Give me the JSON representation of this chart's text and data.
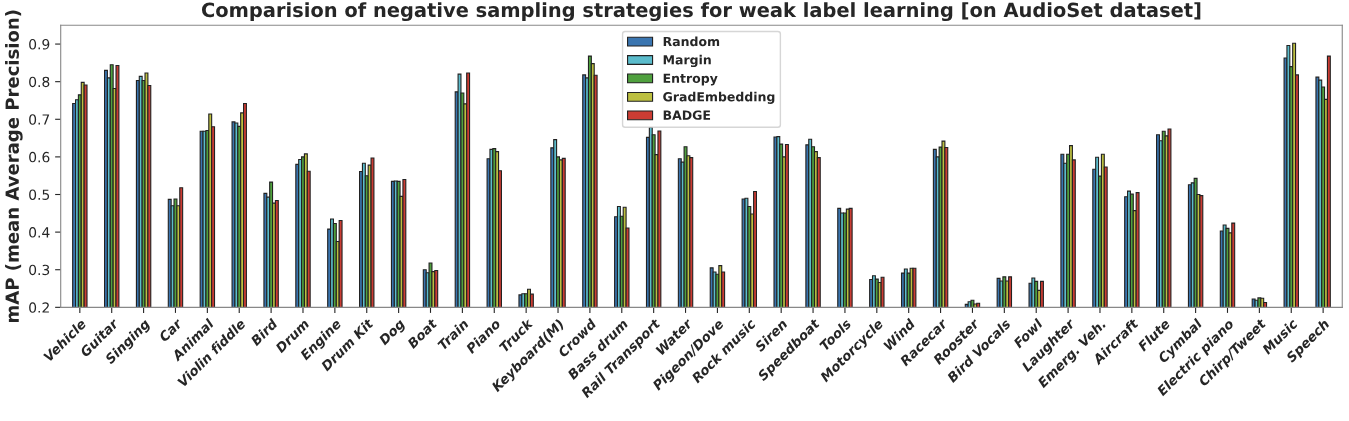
{
  "chart_data": {
    "type": "bar",
    "title": "Comparision of negative sampling strategies for weak label learning [on AudioSet dataset]",
    "ylabel": "mAP (mean Average Precision)",
    "categories": [
      "Vehicle",
      "Guitar",
      "Singing",
      "Car",
      "Animal",
      "Violin fiddle",
      "Bird",
      "Drum",
      "Engine",
      "Drum Kit",
      "Dog",
      "Boat",
      "Train",
      "Piano",
      "Truck",
      "Keyboard(M)",
      "Crowd",
      "Bass drum",
      "Rail Transport",
      "Water",
      "Pigeon/Dove",
      "Rock music",
      "Siren",
      "Speedboat",
      "Tools",
      "Motorcycle",
      "Wind",
      "Racecar",
      "Rooster",
      "Bird Vocals",
      "Fowl",
      "Laughter",
      "Emerg. Veh.",
      "Aircraft",
      "Flute",
      "Cymbal",
      "Electric piano",
      "Chirp/Tweet",
      "Music",
      "Speech"
    ],
    "series": [
      {
        "name": "Random",
        "color": "#3a75b0",
        "values": [
          0.742,
          0.83,
          0.803,
          0.487,
          0.668,
          0.693,
          0.503,
          0.58,
          0.408,
          0.561,
          0.535,
          0.3,
          0.773,
          0.595,
          0.233,
          0.624,
          0.818,
          0.441,
          0.652,
          0.595,
          0.305,
          0.488,
          0.653,
          0.632,
          0.463,
          0.274,
          0.291,
          0.62,
          0.208,
          0.277,
          0.264,
          0.607,
          0.567,
          0.494,
          0.659,
          0.526,
          0.403,
          0.222,
          0.863,
          0.812
        ]
      },
      {
        "name": "Margin",
        "color": "#5bbccc",
        "values": [
          0.752,
          0.81,
          0.814,
          0.47,
          0.668,
          0.69,
          0.493,
          0.593,
          0.435,
          0.583,
          0.536,
          0.292,
          0.82,
          0.62,
          0.236,
          0.646,
          0.81,
          0.468,
          0.678,
          0.586,
          0.294,
          0.49,
          0.654,
          0.647,
          0.451,
          0.284,
          0.302,
          0.6,
          0.215,
          0.27,
          0.278,
          0.583,
          0.599,
          0.509,
          0.643,
          0.531,
          0.419,
          0.219,
          0.896,
          0.804
        ]
      },
      {
        "name": "Entropy",
        "color": "#4fa03e",
        "values": [
          0.765,
          0.845,
          0.803,
          0.488,
          0.67,
          0.681,
          0.533,
          0.6,
          0.423,
          0.55,
          0.535,
          0.318,
          0.77,
          0.622,
          0.236,
          0.6,
          0.868,
          0.442,
          0.659,
          0.627,
          0.288,
          0.468,
          0.634,
          0.627,
          0.451,
          0.275,
          0.291,
          0.626,
          0.219,
          0.281,
          0.269,
          0.607,
          0.549,
          0.501,
          0.668,
          0.543,
          0.41,
          0.225,
          0.84,
          0.786
        ]
      },
      {
        "name": "GradEmbedding",
        "color": "#bcbf40",
        "values": [
          0.798,
          0.782,
          0.823,
          0.47,
          0.714,
          0.717,
          0.477,
          0.608,
          0.375,
          0.578,
          0.495,
          0.295,
          0.741,
          0.614,
          0.248,
          0.592,
          0.848,
          0.466,
          0.606,
          0.603,
          0.311,
          0.448,
          0.6,
          0.614,
          0.461,
          0.266,
          0.304,
          0.642,
          0.209,
          0.27,
          0.245,
          0.63,
          0.607,
          0.457,
          0.656,
          0.5,
          0.398,
          0.224,
          0.902,
          0.753
        ]
      },
      {
        "name": "BADGE",
        "color": "#cc3c33",
        "values": [
          0.791,
          0.843,
          0.79,
          0.518,
          0.68,
          0.742,
          0.484,
          0.562,
          0.431,
          0.597,
          0.54,
          0.298,
          0.823,
          0.563,
          0.235,
          0.596,
          0.817,
          0.411,
          0.669,
          0.598,
          0.294,
          0.508,
          0.633,
          0.598,
          0.463,
          0.28,
          0.304,
          0.625,
          0.211,
          0.281,
          0.269,
          0.592,
          0.573,
          0.505,
          0.674,
          0.497,
          0.424,
          0.213,
          0.818,
          0.868
        ]
      }
    ],
    "ylim": [
      0.2,
      0.95
    ],
    "yticks": [
      0.2,
      0.3,
      0.4,
      0.5,
      0.6,
      0.7,
      0.8,
      0.9
    ],
    "legend": "top center",
    "grid": false
  }
}
